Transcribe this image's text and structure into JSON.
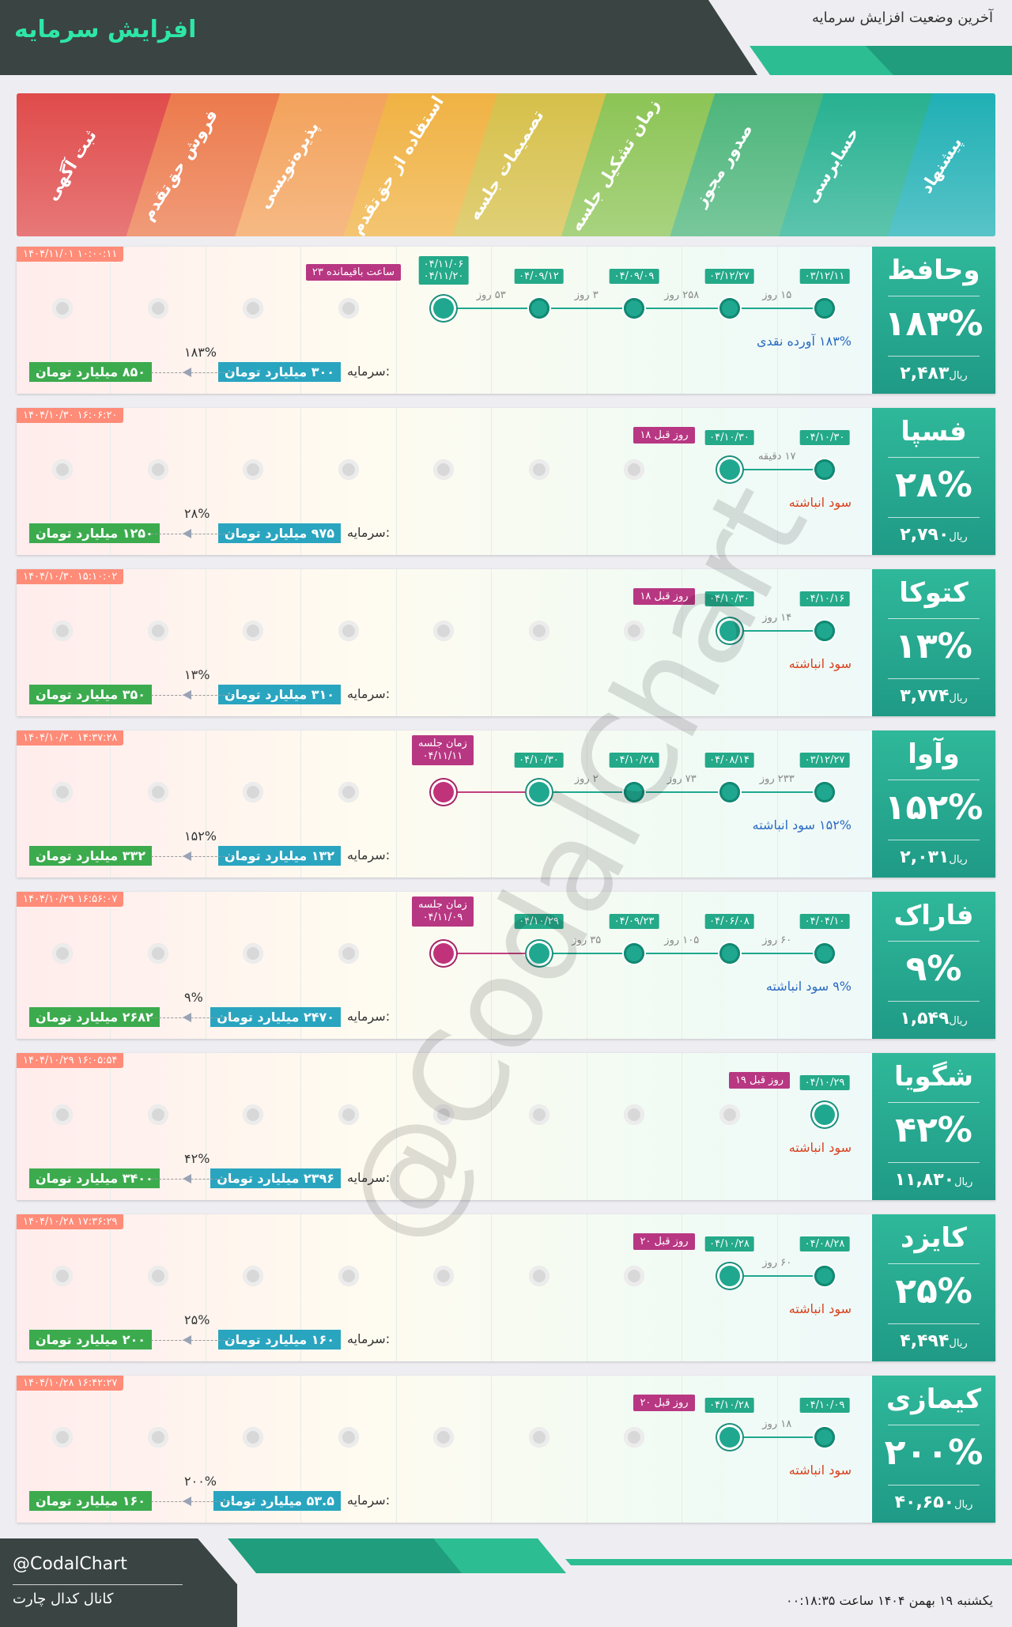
{
  "header": {
    "title": "افزایش سرمایه",
    "subtitle": "آخرین وضعیت افزایش سرمایه"
  },
  "steps": [
    "پیشنهاد",
    "حسابرسی",
    "صدور مجوز",
    "زمان تشکیل جلسه",
    "تصمیمات جلسه",
    "استفاده از حق‌تقدم",
    "پذیره‌نویسی",
    "فروش حق‌تقدم",
    "ثبت آگهی"
  ],
  "step_colors": [
    "#20b0b5",
    "#27b191",
    "#4cb57a",
    "#8cc455",
    "#d6c04a",
    "#f0b243",
    "#f3a25b",
    "#ec7a4c",
    "#e04b4b"
  ],
  "capital_label": "سرمایه:",
  "companies": [
    {
      "symbol": "وحافظ",
      "percent": "۱۸۳%",
      "price": "۲,۴۸۳",
      "price_unit": "ریال",
      "timestamp": "۱۴۰۴/۱۱/۰۱ ۱۰:۰۰:۱۱",
      "status": "۱۸۳% آورده نقدی",
      "status_color": "blue",
      "capital_old": "۳۰۰ میلیارد تومان",
      "capital_new": "۸۵۰ میلیارد تومان",
      "capital_pct": "۱۸۳%",
      "dates": [
        {
          "step": 0,
          "date": "۰۳/۱۲/۱۱"
        },
        {
          "step": 1,
          "date": "۰۳/۱۲/۲۷"
        },
        {
          "step": 2,
          "date": "۰۴/۰۹/۰۹"
        },
        {
          "step": 3,
          "date": "۰۴/۰۹/۱۲"
        },
        {
          "step": 4,
          "date": "۰۴/۱۱/۰۶",
          "date2": "۰۴/۱۱/۲۰"
        }
      ],
      "gaps": [
        {
          "between": 0,
          "text": "۱۵ روز"
        },
        {
          "between": 1,
          "text": "۲۵۸ روز"
        },
        {
          "between": 2,
          "text": "۳ روز"
        },
        {
          "between": 3,
          "text": "۵۳ روز"
        }
      ],
      "current": 4,
      "pending": "۲۳ ساعت باقیمانده",
      "meeting": null
    },
    {
      "symbol": "فسپا",
      "percent": "۲۸%",
      "price": "۲,۷۹۰",
      "price_unit": "ریال",
      "timestamp": "۱۴۰۴/۱۰/۳۰ ۱۶:۰۶:۲۰",
      "status": "سود انباشته",
      "status_color": "red",
      "capital_old": "۹۷۵ میلیارد تومان",
      "capital_new": "۱۲۵۰ میلیارد تومان",
      "capital_pct": "۲۸%",
      "dates": [
        {
          "step": 0,
          "date": "۰۴/۱۰/۳۰"
        },
        {
          "step": 1,
          "date": "۰۴/۱۰/۳۰"
        }
      ],
      "gaps": [
        {
          "between": 0,
          "text": "۱۷ دقیقه"
        }
      ],
      "current": 1,
      "pending": "۱۸ روز قبل",
      "meeting": null
    },
    {
      "symbol": "کتوکا",
      "percent": "۱۳%",
      "price": "۳,۷۷۴",
      "price_unit": "ریال",
      "timestamp": "۱۴۰۴/۱۰/۳۰ ۱۵:۱۰:۰۲",
      "status": "سود انباشته",
      "status_color": "red",
      "capital_old": "۳۱۰ میلیارد تومان",
      "capital_new": "۳۵۰ میلیارد تومان",
      "capital_pct": "۱۳%",
      "dates": [
        {
          "step": 0,
          "date": "۰۴/۱۰/۱۶"
        },
        {
          "step": 1,
          "date": "۰۴/۱۰/۳۰"
        }
      ],
      "gaps": [
        {
          "between": 0,
          "text": "۱۴ روز"
        }
      ],
      "current": 1,
      "pending": "۱۸ روز قبل",
      "meeting": null
    },
    {
      "symbol": "وآوا",
      "percent": "۱۵۲%",
      "price": "۲,۰۳۱",
      "price_unit": "ریال",
      "timestamp": "۱۴۰۴/۱۰/۳۰ ۱۴:۳۷:۲۸",
      "status": "۱۵۲% سود انباشته",
      "status_color": "blue",
      "capital_old": "۱۳۲ میلیارد تومان",
      "capital_new": "۳۳۲ میلیارد تومان",
      "capital_pct": "۱۵۲%",
      "dates": [
        {
          "step": 0,
          "date": "۰۳/۱۲/۲۷"
        },
        {
          "step": 1,
          "date": "۰۴/۰۸/۱۴"
        },
        {
          "step": 2,
          "date": "۰۴/۱۰/۲۸"
        },
        {
          "step": 3,
          "date": "۰۴/۱۰/۳۰"
        }
      ],
      "gaps": [
        {
          "between": 0,
          "text": "۲۳۳ روز"
        },
        {
          "between": 1,
          "text": "۷۳ روز"
        },
        {
          "between": 2,
          "text": "۲ روز"
        }
      ],
      "current": 3,
      "pending": null,
      "meeting": {
        "label": "زمان جلسه",
        "date": "۰۴/۱۱/۱۱"
      }
    },
    {
      "symbol": "فاراک",
      "percent": "۹%",
      "price": "۱,۵۴۹",
      "price_unit": "ریال",
      "timestamp": "۱۴۰۴/۱۰/۲۹ ۱۶:۵۶:۰۷",
      "status": "۹% سود انباشته",
      "status_color": "blue",
      "capital_old": "۲۴۷۰ میلیارد تومان",
      "capital_new": "۲۶۸۲ میلیارد تومان",
      "capital_pct": "۹%",
      "dates": [
        {
          "step": 0,
          "date": "۰۴/۰۴/۱۰"
        },
        {
          "step": 1,
          "date": "۰۴/۰۶/۰۸"
        },
        {
          "step": 2,
          "date": "۰۴/۰۹/۲۳"
        },
        {
          "step": 3,
          "date": "۰۴/۱۰/۲۹"
        }
      ],
      "gaps": [
        {
          "between": 0,
          "text": "۶۰ روز"
        },
        {
          "between": 1,
          "text": "۱۰۵ روز"
        },
        {
          "between": 2,
          "text": "۳۵ روز"
        }
      ],
      "current": 3,
      "pending": null,
      "meeting": {
        "label": "زمان جلسه",
        "date": "۰۴/۱۱/۰۹"
      }
    },
    {
      "symbol": "شگویا",
      "percent": "۴۲%",
      "price": "۱۱,۸۳۰",
      "price_unit": "ریال",
      "timestamp": "۱۴۰۴/۱۰/۲۹ ۱۶:۰۵:۵۴",
      "status": "سود انباشته",
      "status_color": "red",
      "capital_old": "۲۳۹۶ میلیارد تومان",
      "capital_new": "۳۴۰۰ میلیارد تومان",
      "capital_pct": "۴۲%",
      "dates": [
        {
          "step": 0,
          "date": "۰۴/۱۰/۲۹"
        }
      ],
      "gaps": [],
      "current": 0,
      "pending": "۱۹ روز قبل",
      "meeting": null
    },
    {
      "symbol": "کایزد",
      "percent": "۲۵%",
      "price": "۴,۴۹۴",
      "price_unit": "ریال",
      "timestamp": "۱۴۰۴/۱۰/۲۸ ۱۷:۳۶:۲۹",
      "status": "سود انباشته",
      "status_color": "red",
      "capital_old": "۱۶۰ میلیارد تومان",
      "capital_new": "۲۰۰ میلیارد تومان",
      "capital_pct": "۲۵%",
      "dates": [
        {
          "step": 0,
          "date": "۰۴/۰۸/۲۸"
        },
        {
          "step": 1,
          "date": "۰۴/۱۰/۲۸"
        }
      ],
      "gaps": [
        {
          "between": 0,
          "text": "۶۰ روز"
        }
      ],
      "current": 1,
      "pending": "۲۰ روز قبل",
      "meeting": null
    },
    {
      "symbol": "کیمازی",
      "percent": "۲۰۰%",
      "price": "۴۰,۶۵۰",
      "price_unit": "ریال",
      "timestamp": "۱۴۰۴/۱۰/۲۸ ۱۶:۴۲:۲۷",
      "status": "سود انباشته",
      "status_color": "red",
      "capital_old": "۵۳.۵ میلیارد تومان",
      "capital_new": "۱۶۰ میلیارد تومان",
      "capital_pct": "۲۰۰%",
      "dates": [
        {
          "step": 0,
          "date": "۰۴/۱۰/۰۹"
        },
        {
          "step": 1,
          "date": "۰۴/۱۰/۲۸"
        }
      ],
      "gaps": [
        {
          "between": 0,
          "text": "۱۸ روز"
        }
      ],
      "current": 1,
      "pending": "۲۰ روز قبل",
      "meeting": null
    }
  ],
  "footer": {
    "handle": "@CodalChart",
    "channel": "کانال کدال چارت",
    "datetime": "یکشنبه ۱۹ بهمن ۱۴۰۴ ساعت ۰۰:۱۸:۳۵"
  },
  "watermark": "@CodalChart"
}
